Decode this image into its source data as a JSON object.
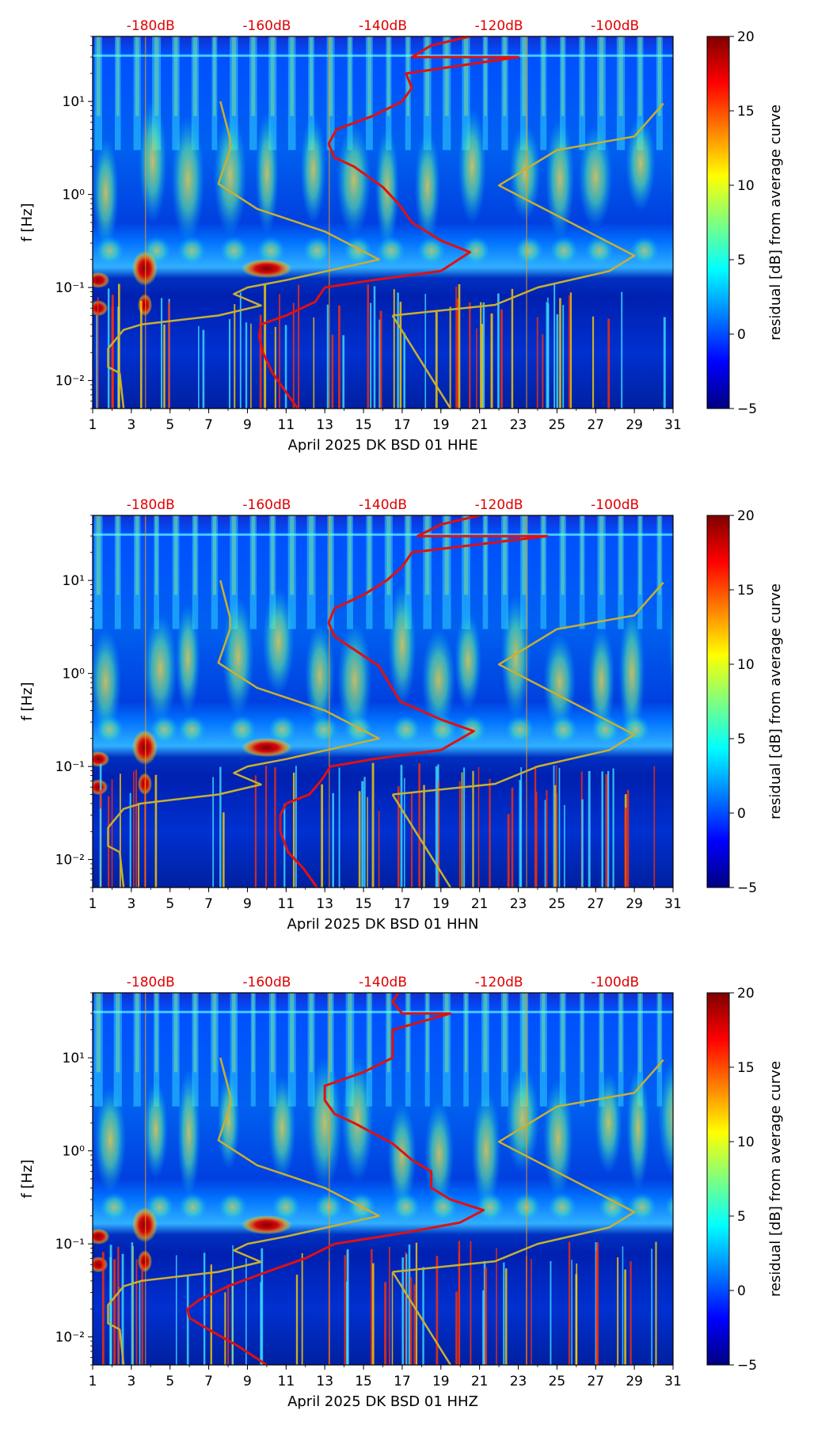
{
  "colors": {
    "background": "#ffffff",
    "power_curve": "#e01010",
    "model_curve": "#c8b030",
    "colormap": [
      "#00007f",
      "#0000ff",
      "#007fff",
      "#00ffff",
      "#7fff7f",
      "#ffff00",
      "#ff7f00",
      "#ff0000",
      "#7f0000"
    ]
  },
  "chart_data": [
    {
      "type": "heatmap",
      "xlabel": "April 2025 DK BSD 01 HHE",
      "ylabel": "f [Hz]",
      "colorbar_label": "residual [dB] from average curve",
      "x_ticks": [
        "1",
        "3",
        "5",
        "7",
        "9",
        "11",
        "13",
        "15",
        "17",
        "19",
        "21",
        "23",
        "25",
        "27",
        "29",
        "31"
      ],
      "x_range": [
        1,
        31
      ],
      "y_scale": "log",
      "y_range": [
        0.005,
        50
      ],
      "y_ticks": [
        "10⁻²",
        "10⁻¹",
        "10⁰",
        "10¹"
      ],
      "top_axis_labels": [
        "-180dB",
        "-160dB",
        "-140dB",
        "-120dB",
        "-100dB"
      ],
      "top_axis_positions": [
        4.0,
        10.0,
        16.0,
        22.0,
        28.0
      ],
      "color_range": [
        -5,
        20
      ],
      "colorbar_ticks": [
        "−5",
        "0",
        "5",
        "10",
        "15",
        "20"
      ],
      "series": [
        {
          "points": [
            [
              11.6,
              0.005
            ],
            [
              10.9,
              0.008
            ],
            [
              10.3,
              0.012
            ],
            [
              9.8,
              0.02
            ],
            [
              9.6,
              0.03
            ],
            [
              9.7,
              0.04
            ],
            [
              11.0,
              0.05
            ],
            [
              12.5,
              0.07
            ],
            [
              13.0,
              0.1
            ],
            [
              15.5,
              0.12
            ],
            [
              19.0,
              0.15
            ],
            [
              20.5,
              0.24
            ],
            [
              19.0,
              0.32
            ],
            [
              17.5,
              0.5
            ],
            [
              16.8,
              0.8
            ],
            [
              16.0,
              1.2
            ],
            [
              14.5,
              2.0
            ],
            [
              13.5,
              2.5
            ],
            [
              13.2,
              3.5
            ],
            [
              13.6,
              5.0
            ],
            [
              15.5,
              7.0
            ],
            [
              17.0,
              10.0
            ],
            [
              17.5,
              14.0
            ],
            [
              17.2,
              20.0
            ],
            [
              23.0,
              30.0
            ],
            [
              17.5,
              30.0
            ],
            [
              18.5,
              40.0
            ],
            [
              20.5,
              50.0
            ]
          ]
        },
        {
          "points": [
            [
              2.6,
              0.005
            ],
            [
              2.4,
              0.012
            ],
            [
              1.8,
              0.014
            ],
            [
              1.8,
              0.022
            ],
            [
              2.6,
              0.035
            ],
            [
              3.5,
              0.04
            ],
            [
              7.5,
              0.05
            ],
            [
              9.7,
              0.064
            ],
            [
              8.3,
              0.085
            ],
            [
              9.0,
              0.1
            ],
            [
              11.0,
              0.12
            ],
            [
              15.8,
              0.2
            ],
            [
              13.0,
              0.4
            ],
            [
              9.5,
              0.7
            ],
            [
              7.5,
              1.3
            ],
            [
              8.1,
              3.0
            ],
            [
              8.1,
              4.0
            ],
            [
              7.6,
              10.0
            ]
          ]
        },
        {
          "points": [
            [
              16.5,
              0.05
            ],
            [
              21.8,
              0.065
            ],
            [
              24.0,
              0.1
            ],
            [
              27.7,
              0.15
            ],
            [
              29.0,
              0.22
            ],
            [
              22.0,
              1.25
            ],
            [
              25.0,
              3.0
            ],
            [
              29.0,
              4.2
            ],
            [
              30.5,
              9.5
            ]
          ]
        },
        {
          "points": [
            [
              16.5,
              0.05
            ],
            [
              19.5,
              0.005
            ]
          ]
        }
      ]
    },
    {
      "type": "heatmap",
      "xlabel": "April 2025 DK BSD 01 HHN",
      "ylabel": "f [Hz]",
      "colorbar_label": "residual [dB] from average curve",
      "x_ticks": [
        "1",
        "3",
        "5",
        "7",
        "9",
        "11",
        "13",
        "15",
        "17",
        "19",
        "21",
        "23",
        "25",
        "27",
        "29",
        "31"
      ],
      "x_range": [
        1,
        31
      ],
      "y_scale": "log",
      "y_range": [
        0.005,
        50
      ],
      "y_ticks": [
        "10⁻²",
        "10⁻¹",
        "10⁰",
        "10¹"
      ],
      "top_axis_labels": [
        "-180dB",
        "-160dB",
        "-140dB",
        "-120dB",
        "-100dB"
      ],
      "top_axis_positions": [
        4.0,
        10.0,
        16.0,
        22.0,
        28.0
      ],
      "color_range": [
        -5,
        20
      ],
      "colorbar_ticks": [
        "−5",
        "0",
        "5",
        "10",
        "15",
        "20"
      ],
      "series": [
        {
          "points": [
            [
              12.6,
              0.005
            ],
            [
              11.9,
              0.008
            ],
            [
              11.1,
              0.012
            ],
            [
              10.7,
              0.02
            ],
            [
              10.7,
              0.03
            ],
            [
              11.0,
              0.04
            ],
            [
              12.2,
              0.05
            ],
            [
              12.8,
              0.07
            ],
            [
              13.3,
              0.1
            ],
            [
              15.5,
              0.12
            ],
            [
              19.0,
              0.15
            ],
            [
              20.7,
              0.24
            ],
            [
              19.0,
              0.32
            ],
            [
              16.9,
              0.5
            ],
            [
              16.3,
              0.8
            ],
            [
              15.8,
              1.2
            ],
            [
              14.2,
              2.0
            ],
            [
              13.5,
              2.5
            ],
            [
              13.2,
              3.5
            ],
            [
              13.5,
              5.0
            ],
            [
              15.0,
              7.0
            ],
            [
              16.2,
              10.0
            ],
            [
              17.0,
              14.0
            ],
            [
              17.5,
              20.0
            ],
            [
              24.5,
              30.0
            ],
            [
              17.8,
              30.0
            ],
            [
              19.0,
              40.0
            ],
            [
              21.0,
              50.0
            ]
          ]
        },
        {
          "points": [
            [
              2.6,
              0.005
            ],
            [
              2.4,
              0.012
            ],
            [
              1.8,
              0.014
            ],
            [
              1.8,
              0.022
            ],
            [
              2.6,
              0.035
            ],
            [
              3.5,
              0.04
            ],
            [
              7.5,
              0.05
            ],
            [
              9.7,
              0.064
            ],
            [
              8.3,
              0.085
            ],
            [
              9.0,
              0.1
            ],
            [
              11.0,
              0.12
            ],
            [
              15.8,
              0.2
            ],
            [
              13.0,
              0.4
            ],
            [
              9.5,
              0.7
            ],
            [
              7.5,
              1.3
            ],
            [
              8.1,
              3.0
            ],
            [
              8.1,
              4.0
            ],
            [
              7.6,
              10.0
            ]
          ]
        },
        {
          "points": [
            [
              16.5,
              0.05
            ],
            [
              21.8,
              0.065
            ],
            [
              24.0,
              0.1
            ],
            [
              27.7,
              0.15
            ],
            [
              29.0,
              0.22
            ],
            [
              22.0,
              1.25
            ],
            [
              25.0,
              3.0
            ],
            [
              29.0,
              4.2
            ],
            [
              30.5,
              9.5
            ]
          ]
        },
        {
          "points": [
            [
              16.5,
              0.05
            ],
            [
              19.5,
              0.005
            ]
          ]
        }
      ]
    },
    {
      "type": "heatmap",
      "xlabel": "April 2025 DK BSD 01 HHZ",
      "ylabel": "f [Hz]",
      "colorbar_label": "residual [dB] from average curve",
      "x_ticks": [
        "1",
        "3",
        "5",
        "7",
        "9",
        "11",
        "13",
        "15",
        "17",
        "19",
        "21",
        "23",
        "25",
        "27",
        "29",
        "31"
      ],
      "x_range": [
        1,
        31
      ],
      "y_scale": "log",
      "y_range": [
        0.005,
        50
      ],
      "y_ticks": [
        "10⁻²",
        "10⁻¹",
        "10⁰",
        "10¹"
      ],
      "top_axis_labels": [
        "-180dB",
        "-160dB",
        "-140dB",
        "-120dB",
        "-100dB"
      ],
      "top_axis_positions": [
        4.0,
        10.0,
        16.0,
        22.0,
        28.0
      ],
      "color_range": [
        -5,
        20
      ],
      "colorbar_ticks": [
        "−5",
        "0",
        "5",
        "10",
        "15",
        "20"
      ],
      "series": [
        {
          "points": [
            [
              10.0,
              0.005
            ],
            [
              8.5,
              0.008
            ],
            [
              7.0,
              0.012
            ],
            [
              6.0,
              0.016
            ],
            [
              5.9,
              0.02
            ],
            [
              6.5,
              0.025
            ],
            [
              8.0,
              0.035
            ],
            [
              10.0,
              0.05
            ],
            [
              12.0,
              0.07
            ],
            [
              13.5,
              0.1
            ],
            [
              17.0,
              0.13
            ],
            [
              20.0,
              0.17
            ],
            [
              21.2,
              0.23
            ],
            [
              19.5,
              0.3
            ],
            [
              18.5,
              0.4
            ],
            [
              18.5,
              0.6
            ],
            [
              17.5,
              0.8
            ],
            [
              16.5,
              1.2
            ],
            [
              14.5,
              2.0
            ],
            [
              13.5,
              2.5
            ],
            [
              13.0,
              3.5
            ],
            [
              13.0,
              5.0
            ],
            [
              15.0,
              7.0
            ],
            [
              16.5,
              10.0
            ],
            [
              16.5,
              14.0
            ],
            [
              16.5,
              20.0
            ],
            [
              19.5,
              30.0
            ],
            [
              17.0,
              30.0
            ],
            [
              16.5,
              40.0
            ],
            [
              16.8,
              50.0
            ]
          ]
        },
        {
          "points": [
            [
              2.6,
              0.005
            ],
            [
              2.4,
              0.012
            ],
            [
              1.8,
              0.014
            ],
            [
              1.8,
              0.022
            ],
            [
              2.6,
              0.035
            ],
            [
              3.5,
              0.04
            ],
            [
              7.5,
              0.05
            ],
            [
              9.7,
              0.064
            ],
            [
              8.3,
              0.085
            ],
            [
              9.0,
              0.1
            ],
            [
              11.0,
              0.12
            ],
            [
              15.8,
              0.2
            ],
            [
              13.0,
              0.4
            ],
            [
              9.5,
              0.7
            ],
            [
              7.5,
              1.3
            ],
            [
              8.1,
              3.0
            ],
            [
              8.1,
              4.0
            ],
            [
              7.6,
              10.0
            ]
          ]
        },
        {
          "points": [
            [
              16.5,
              0.05
            ],
            [
              21.8,
              0.065
            ],
            [
              24.0,
              0.1
            ],
            [
              27.7,
              0.15
            ],
            [
              29.0,
              0.22
            ],
            [
              22.0,
              1.25
            ],
            [
              25.0,
              3.0
            ],
            [
              29.0,
              4.2
            ],
            [
              30.5,
              9.5
            ]
          ]
        },
        {
          "points": [
            [
              16.5,
              0.05
            ],
            [
              19.5,
              0.005
            ]
          ]
        }
      ]
    }
  ]
}
